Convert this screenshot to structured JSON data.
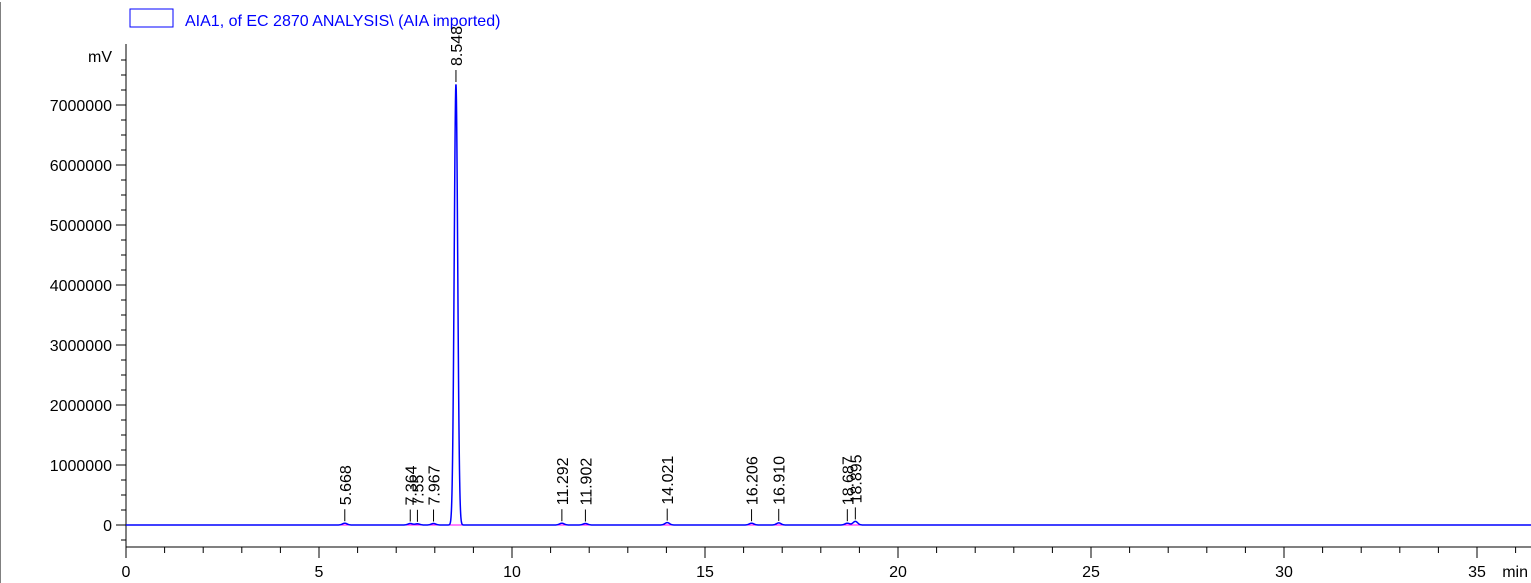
{
  "legend": {
    "label": "AIA1, of EC 2870 ANALYSIS\\ (AIA imported)",
    "color": "#0000ff"
  },
  "chart_data": {
    "type": "line",
    "title": "",
    "xlabel": "min",
    "ylabel": "mV",
    "xlim": [
      0,
      36.8
    ],
    "ylim": [
      -350000,
      8000000
    ],
    "x_ticks": [
      0,
      5,
      10,
      15,
      20,
      25,
      30,
      35
    ],
    "y_ticks": [
      0,
      1000000,
      2000000,
      3000000,
      4000000,
      5000000,
      6000000,
      7000000
    ],
    "x_tick_labels": [
      "0",
      "5",
      "10",
      "15",
      "20",
      "25",
      "30",
      "35"
    ],
    "y_tick_labels": [
      "0",
      "1000000",
      "2000000",
      "3000000",
      "4000000",
      "5000000",
      "6000000",
      "7000000"
    ],
    "grid": false,
    "legend_position": "top-left",
    "trace_color": "#0000ff",
    "baseline_color": "#ff00ff",
    "peaks": [
      {
        "rt": 5.668,
        "label": "5.668",
        "height": 30000
      },
      {
        "rt": 7.364,
        "label": "7.364",
        "height": 25000
      },
      {
        "rt": 7.55,
        "label": "7.55",
        "height": 20000
      },
      {
        "rt": 7.967,
        "label": "7.967",
        "height": 25000
      },
      {
        "rt": 8.548,
        "label": "8.548",
        "height": 7350000
      },
      {
        "rt": 11.292,
        "label": "11.292",
        "height": 30000
      },
      {
        "rt": 11.902,
        "label": "11.902",
        "height": 25000
      },
      {
        "rt": 14.021,
        "label": "14.021",
        "height": 40000
      },
      {
        "rt": 16.206,
        "label": "16.206",
        "height": 30000
      },
      {
        "rt": 16.91,
        "label": "16.910",
        "height": 35000
      },
      {
        "rt": 18.687,
        "label": "18.687",
        "height": 30000
      },
      {
        "rt": 18.895,
        "label": "18.895",
        "height": 60000
      }
    ]
  }
}
